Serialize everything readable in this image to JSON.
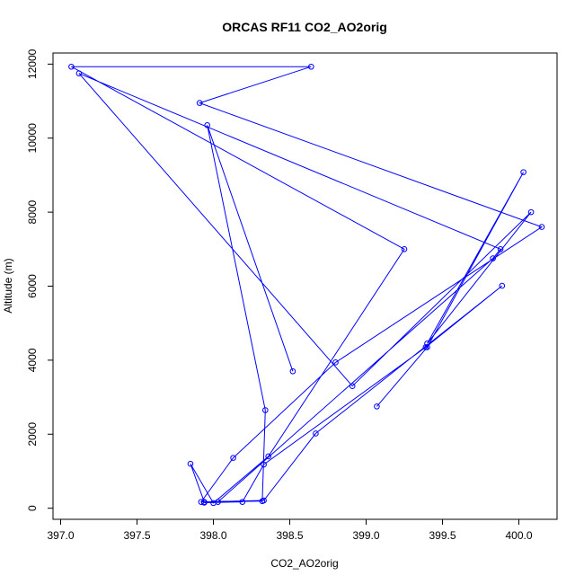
{
  "chart_data": {
    "type": "line",
    "title": "ORCAS RF11 CO2_AO2orig",
    "xlabel": "CO2_AO2orig",
    "ylabel": "Altitude (m)",
    "xlim": [
      396.95,
      400.25
    ],
    "ylim": [
      -300,
      12300
    ],
    "x_ticks": [
      397.0,
      397.5,
      398.0,
      398.5,
      399.0,
      399.5,
      400.0
    ],
    "x_tick_labels": [
      "397.0",
      "397.5",
      "398.0",
      "398.5",
      "399.0",
      "399.5",
      "400.0"
    ],
    "y_ticks": [
      0,
      2000,
      4000,
      6000,
      8000,
      10000,
      12000
    ],
    "y_tick_labels": [
      "0",
      "2000",
      "4000",
      "6000",
      "8000",
      "10000",
      "12000"
    ],
    "grid": false,
    "series": [
      {
        "color": "#0000ff",
        "marker": "open-circle",
        "x": [
          399.07,
          399.4,
          400.03,
          399.4,
          400.08,
          398.91,
          397.12,
          399.88,
          399.83,
          398.03,
          397.94,
          398.19,
          398.33,
          399.39,
          399.89,
          398.67,
          398.33,
          397.94,
          397.85,
          398.0,
          398.36,
          399.25,
          397.07,
          398.64,
          397.91,
          400.15,
          398.8,
          398.13,
          397.92,
          398.32,
          398.34,
          397.96,
          398.52
        ],
        "y": [
          2750,
          4350,
          9080,
          4450,
          8000,
          3300,
          11750,
          7000,
          6750,
          170,
          150,
          170,
          1180,
          4350,
          6010,
          2020,
          210,
          170,
          1200,
          140,
          1400,
          7000,
          11930,
          11930,
          10950,
          7600,
          3940,
          1360,
          170,
          190,
          2650,
          10350,
          3700
        ]
      }
    ]
  }
}
